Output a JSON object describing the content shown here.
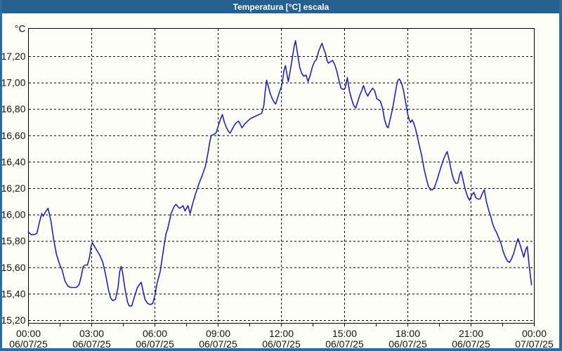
{
  "window": {
    "title": "Temperatura [°C] escala"
  },
  "colors": {
    "titlebar": "#25618f",
    "frame": "#2d6c9d",
    "title_text": "#ffffff",
    "background": "#fcfdf5",
    "plot_background": "#fdfef8",
    "grid": "#000000",
    "axis": "#000000",
    "tick_text": "#141414",
    "line": "#2222bb"
  },
  "chart_data": {
    "type": "line",
    "title": "Temperatura [°C] escala",
    "ylabel": "°C",
    "unit_label": "°C",
    "legend": "none",
    "grid": "dashed",
    "x_axis": {
      "start_hour": 0,
      "end_hour": 24,
      "major_tick_hours": 3,
      "minor_tick_hours": 1.5,
      "ticks": [
        {
          "time": "00:00",
          "date": "06/07/25"
        },
        {
          "time": "03:00",
          "date": "06/07/25"
        },
        {
          "time": "06:00",
          "date": "06/07/25"
        },
        {
          "time": "09:00",
          "date": "06/07/25"
        },
        {
          "time": "12:00",
          "date": "06/07/25"
        },
        {
          "time": "15:00",
          "date": "06/07/25"
        },
        {
          "time": "18:00",
          "date": "06/07/25"
        },
        {
          "time": "21:00",
          "date": "06/07/25"
        },
        {
          "time": "00:00",
          "date": "07/07/25"
        }
      ]
    },
    "y_axis": {
      "min": 15.2,
      "max": 17.2,
      "step": 0.2,
      "top_padding_value": 17.41,
      "tick_labels": [
        "17,20",
        "17,00",
        "16,80",
        "16,60",
        "16,40",
        "16,20",
        "16,00",
        "15,80",
        "15,60",
        "15,40",
        "15,20"
      ]
    },
    "series": [
      {
        "name": "Temperatura",
        "color": "#2222bb",
        "points": [
          [
            0,
            15.87
          ],
          [
            0.13,
            15.85
          ],
          [
            0.27,
            15.85
          ],
          [
            0.4,
            15.86
          ],
          [
            0.53,
            15.95
          ],
          [
            0.63,
            16.01
          ],
          [
            0.7,
            15.99
          ],
          [
            0.8,
            16.02
          ],
          [
            0.93,
            16.05
          ],
          [
            1.07,
            15.95
          ],
          [
            1.2,
            15.81
          ],
          [
            1.33,
            15.7
          ],
          [
            1.47,
            15.63
          ],
          [
            1.6,
            15.58
          ],
          [
            1.73,
            15.5
          ],
          [
            1.87,
            15.46
          ],
          [
            2,
            15.45
          ],
          [
            2.13,
            15.45
          ],
          [
            2.27,
            15.45
          ],
          [
            2.4,
            15.47
          ],
          [
            2.5,
            15.53
          ],
          [
            2.6,
            15.61
          ],
          [
            2.7,
            15.62
          ],
          [
            2.8,
            15.62
          ],
          [
            2.9,
            15.68
          ],
          [
            2.97,
            15.76
          ],
          [
            3.03,
            15.79
          ],
          [
            3.1,
            15.77
          ],
          [
            3.25,
            15.73
          ],
          [
            3.4,
            15.69
          ],
          [
            3.53,
            15.64
          ],
          [
            3.67,
            15.54
          ],
          [
            3.8,
            15.43
          ],
          [
            3.9,
            15.37
          ],
          [
            4,
            15.35
          ],
          [
            4.13,
            15.36
          ],
          [
            4.25,
            15.45
          ],
          [
            4.33,
            15.57
          ],
          [
            4.4,
            15.61
          ],
          [
            4.47,
            15.56
          ],
          [
            4.58,
            15.44
          ],
          [
            4.7,
            15.34
          ],
          [
            4.78,
            15.31
          ],
          [
            4.9,
            15.31
          ],
          [
            5.03,
            15.38
          ],
          [
            5.17,
            15.45
          ],
          [
            5.3,
            15.48
          ],
          [
            5.35,
            15.49
          ],
          [
            5.43,
            15.43
          ],
          [
            5.53,
            15.36
          ],
          [
            5.65,
            15.33
          ],
          [
            5.78,
            15.32
          ],
          [
            5.9,
            15.33
          ],
          [
            6,
            15.39
          ],
          [
            6.1,
            15.48
          ],
          [
            6.25,
            15.57
          ],
          [
            6.4,
            15.73
          ],
          [
            6.53,
            15.86
          ],
          [
            6.6,
            15.89
          ],
          [
            6.7,
            15.96
          ],
          [
            6.77,
            16.01
          ],
          [
            6.9,
            16.06
          ],
          [
            7,
            16.08
          ],
          [
            7.1,
            16.06
          ],
          [
            7.17,
            16.05
          ],
          [
            7.27,
            16.06
          ],
          [
            7.33,
            16.07
          ],
          [
            7.43,
            16.03
          ],
          [
            7.57,
            16.07
          ],
          [
            7.67,
            16.01
          ],
          [
            7.8,
            16.09
          ],
          [
            7.93,
            16.16
          ],
          [
            8.1,
            16.24
          ],
          [
            8.27,
            16.31
          ],
          [
            8.4,
            16.37
          ],
          [
            8.53,
            16.48
          ],
          [
            8.6,
            16.55
          ],
          [
            8.67,
            16.6
          ],
          [
            8.8,
            16.61
          ],
          [
            8.9,
            16.62
          ],
          [
            9,
            16.67
          ],
          [
            9.1,
            16.72
          ],
          [
            9.2,
            16.76
          ],
          [
            9.3,
            16.7
          ],
          [
            9.4,
            16.66
          ],
          [
            9.5,
            16.63
          ],
          [
            9.57,
            16.62
          ],
          [
            9.67,
            16.65
          ],
          [
            9.77,
            16.68
          ],
          [
            9.87,
            16.7
          ],
          [
            9.97,
            16.71
          ],
          [
            10.07,
            16.68
          ],
          [
            10.13,
            16.66
          ],
          [
            10.27,
            16.69
          ],
          [
            10.4,
            16.71
          ],
          [
            10.53,
            16.73
          ],
          [
            10.67,
            16.74
          ],
          [
            10.8,
            16.75
          ],
          [
            10.93,
            16.76
          ],
          [
            11.07,
            16.77
          ],
          [
            11.17,
            16.83
          ],
          [
            11.23,
            16.93
          ],
          [
            11.3,
            17.02
          ],
          [
            11.37,
            16.98
          ],
          [
            11.47,
            16.92
          ],
          [
            11.57,
            16.88
          ],
          [
            11.67,
            16.85
          ],
          [
            11.73,
            16.84
          ],
          [
            11.83,
            16.89
          ],
          [
            11.93,
            16.94
          ],
          [
            12,
            16.97
          ],
          [
            12.07,
            17.03
          ],
          [
            12.13,
            17.1
          ],
          [
            12.2,
            17.13
          ],
          [
            12.27,
            17.06
          ],
          [
            12.33,
            17.01
          ],
          [
            12.43,
            17.1
          ],
          [
            12.53,
            17.2
          ],
          [
            12.6,
            17.27
          ],
          [
            12.67,
            17.32
          ],
          [
            12.77,
            17.22
          ],
          [
            12.87,
            17.12
          ],
          [
            12.97,
            17.07
          ],
          [
            13.07,
            17.05
          ],
          [
            13.17,
            17.06
          ],
          [
            13.27,
            17.01
          ],
          [
            13.37,
            17.06
          ],
          [
            13.47,
            17.12
          ],
          [
            13.57,
            17.16
          ],
          [
            13.67,
            17.18
          ],
          [
            13.77,
            17.24
          ],
          [
            13.87,
            17.28
          ],
          [
            13.93,
            17.3
          ],
          [
            14.03,
            17.25
          ],
          [
            14.1,
            17.22
          ],
          [
            14.17,
            17.17
          ],
          [
            14.23,
            17.15
          ],
          [
            14.33,
            17.16
          ],
          [
            14.43,
            17.17
          ],
          [
            14.53,
            17.14
          ],
          [
            14.63,
            17.09
          ],
          [
            14.73,
            17.02
          ],
          [
            14.83,
            16.96
          ],
          [
            14.93,
            16.95
          ],
          [
            15.03,
            16.96
          ],
          [
            15.13,
            17.04
          ],
          [
            15.23,
            16.94
          ],
          [
            15.33,
            16.88
          ],
          [
            15.43,
            16.83
          ],
          [
            15.53,
            16.81
          ],
          [
            15.63,
            16.86
          ],
          [
            15.73,
            16.91
          ],
          [
            15.83,
            16.95
          ],
          [
            15.9,
            16.98
          ],
          [
            16,
            16.93
          ],
          [
            16.1,
            16.9
          ],
          [
            16.2,
            16.93
          ],
          [
            16.33,
            16.96
          ],
          [
            16.43,
            16.94
          ],
          [
            16.53,
            16.88
          ],
          [
            16.63,
            16.87
          ],
          [
            16.7,
            16.86
          ],
          [
            16.8,
            16.81
          ],
          [
            16.9,
            16.72
          ],
          [
            17,
            16.67
          ],
          [
            17.07,
            16.66
          ],
          [
            17.17,
            16.73
          ],
          [
            17.27,
            16.8
          ],
          [
            17.37,
            16.89
          ],
          [
            17.47,
            16.98
          ],
          [
            17.53,
            17.02
          ],
          [
            17.6,
            17.03
          ],
          [
            17.7,
            17.0
          ],
          [
            17.8,
            16.94
          ],
          [
            17.9,
            16.85
          ],
          [
            18,
            16.76
          ],
          [
            18.07,
            16.72
          ],
          [
            18.13,
            16.7
          ],
          [
            18.2,
            16.72
          ],
          [
            18.27,
            16.7
          ],
          [
            18.37,
            16.65
          ],
          [
            18.47,
            16.58
          ],
          [
            18.57,
            16.51
          ],
          [
            18.67,
            16.44
          ],
          [
            18.77,
            16.35
          ],
          [
            18.87,
            16.28
          ],
          [
            18.97,
            16.22
          ],
          [
            19.07,
            16.19
          ],
          [
            19.17,
            16.19
          ],
          [
            19.27,
            16.21
          ],
          [
            19.4,
            16.27
          ],
          [
            19.53,
            16.34
          ],
          [
            19.67,
            16.41
          ],
          [
            19.77,
            16.45
          ],
          [
            19.87,
            16.48
          ],
          [
            19.97,
            16.41
          ],
          [
            20.07,
            16.33
          ],
          [
            20.17,
            16.27
          ],
          [
            20.27,
            16.24
          ],
          [
            20.37,
            16.24
          ],
          [
            20.47,
            16.31
          ],
          [
            20.53,
            16.33
          ],
          [
            20.63,
            16.26
          ],
          [
            20.73,
            16.19
          ],
          [
            20.83,
            16.14
          ],
          [
            20.93,
            16.11
          ],
          [
            21.03,
            16.15
          ],
          [
            21.13,
            16.17
          ],
          [
            21.23,
            16.13
          ],
          [
            21.33,
            16.12
          ],
          [
            21.43,
            16.12
          ],
          [
            21.53,
            16.16
          ],
          [
            21.63,
            16.19
          ],
          [
            21.73,
            16.1
          ],
          [
            21.83,
            16.04
          ],
          [
            21.93,
            15.99
          ],
          [
            22.03,
            15.93
          ],
          [
            22.13,
            15.89
          ],
          [
            22.23,
            15.86
          ],
          [
            22.33,
            15.82
          ],
          [
            22.43,
            15.78
          ],
          [
            22.53,
            15.72
          ],
          [
            22.63,
            15.68
          ],
          [
            22.73,
            15.65
          ],
          [
            22.83,
            15.64
          ],
          [
            22.93,
            15.67
          ],
          [
            23.03,
            15.71
          ],
          [
            23.13,
            15.77
          ],
          [
            23.23,
            15.82
          ],
          [
            23.33,
            15.77
          ],
          [
            23.43,
            15.72
          ],
          [
            23.5,
            15.68
          ],
          [
            23.6,
            15.74
          ],
          [
            23.67,
            15.76
          ],
          [
            23.77,
            15.6
          ],
          [
            23.87,
            15.47
          ]
        ]
      }
    ]
  }
}
